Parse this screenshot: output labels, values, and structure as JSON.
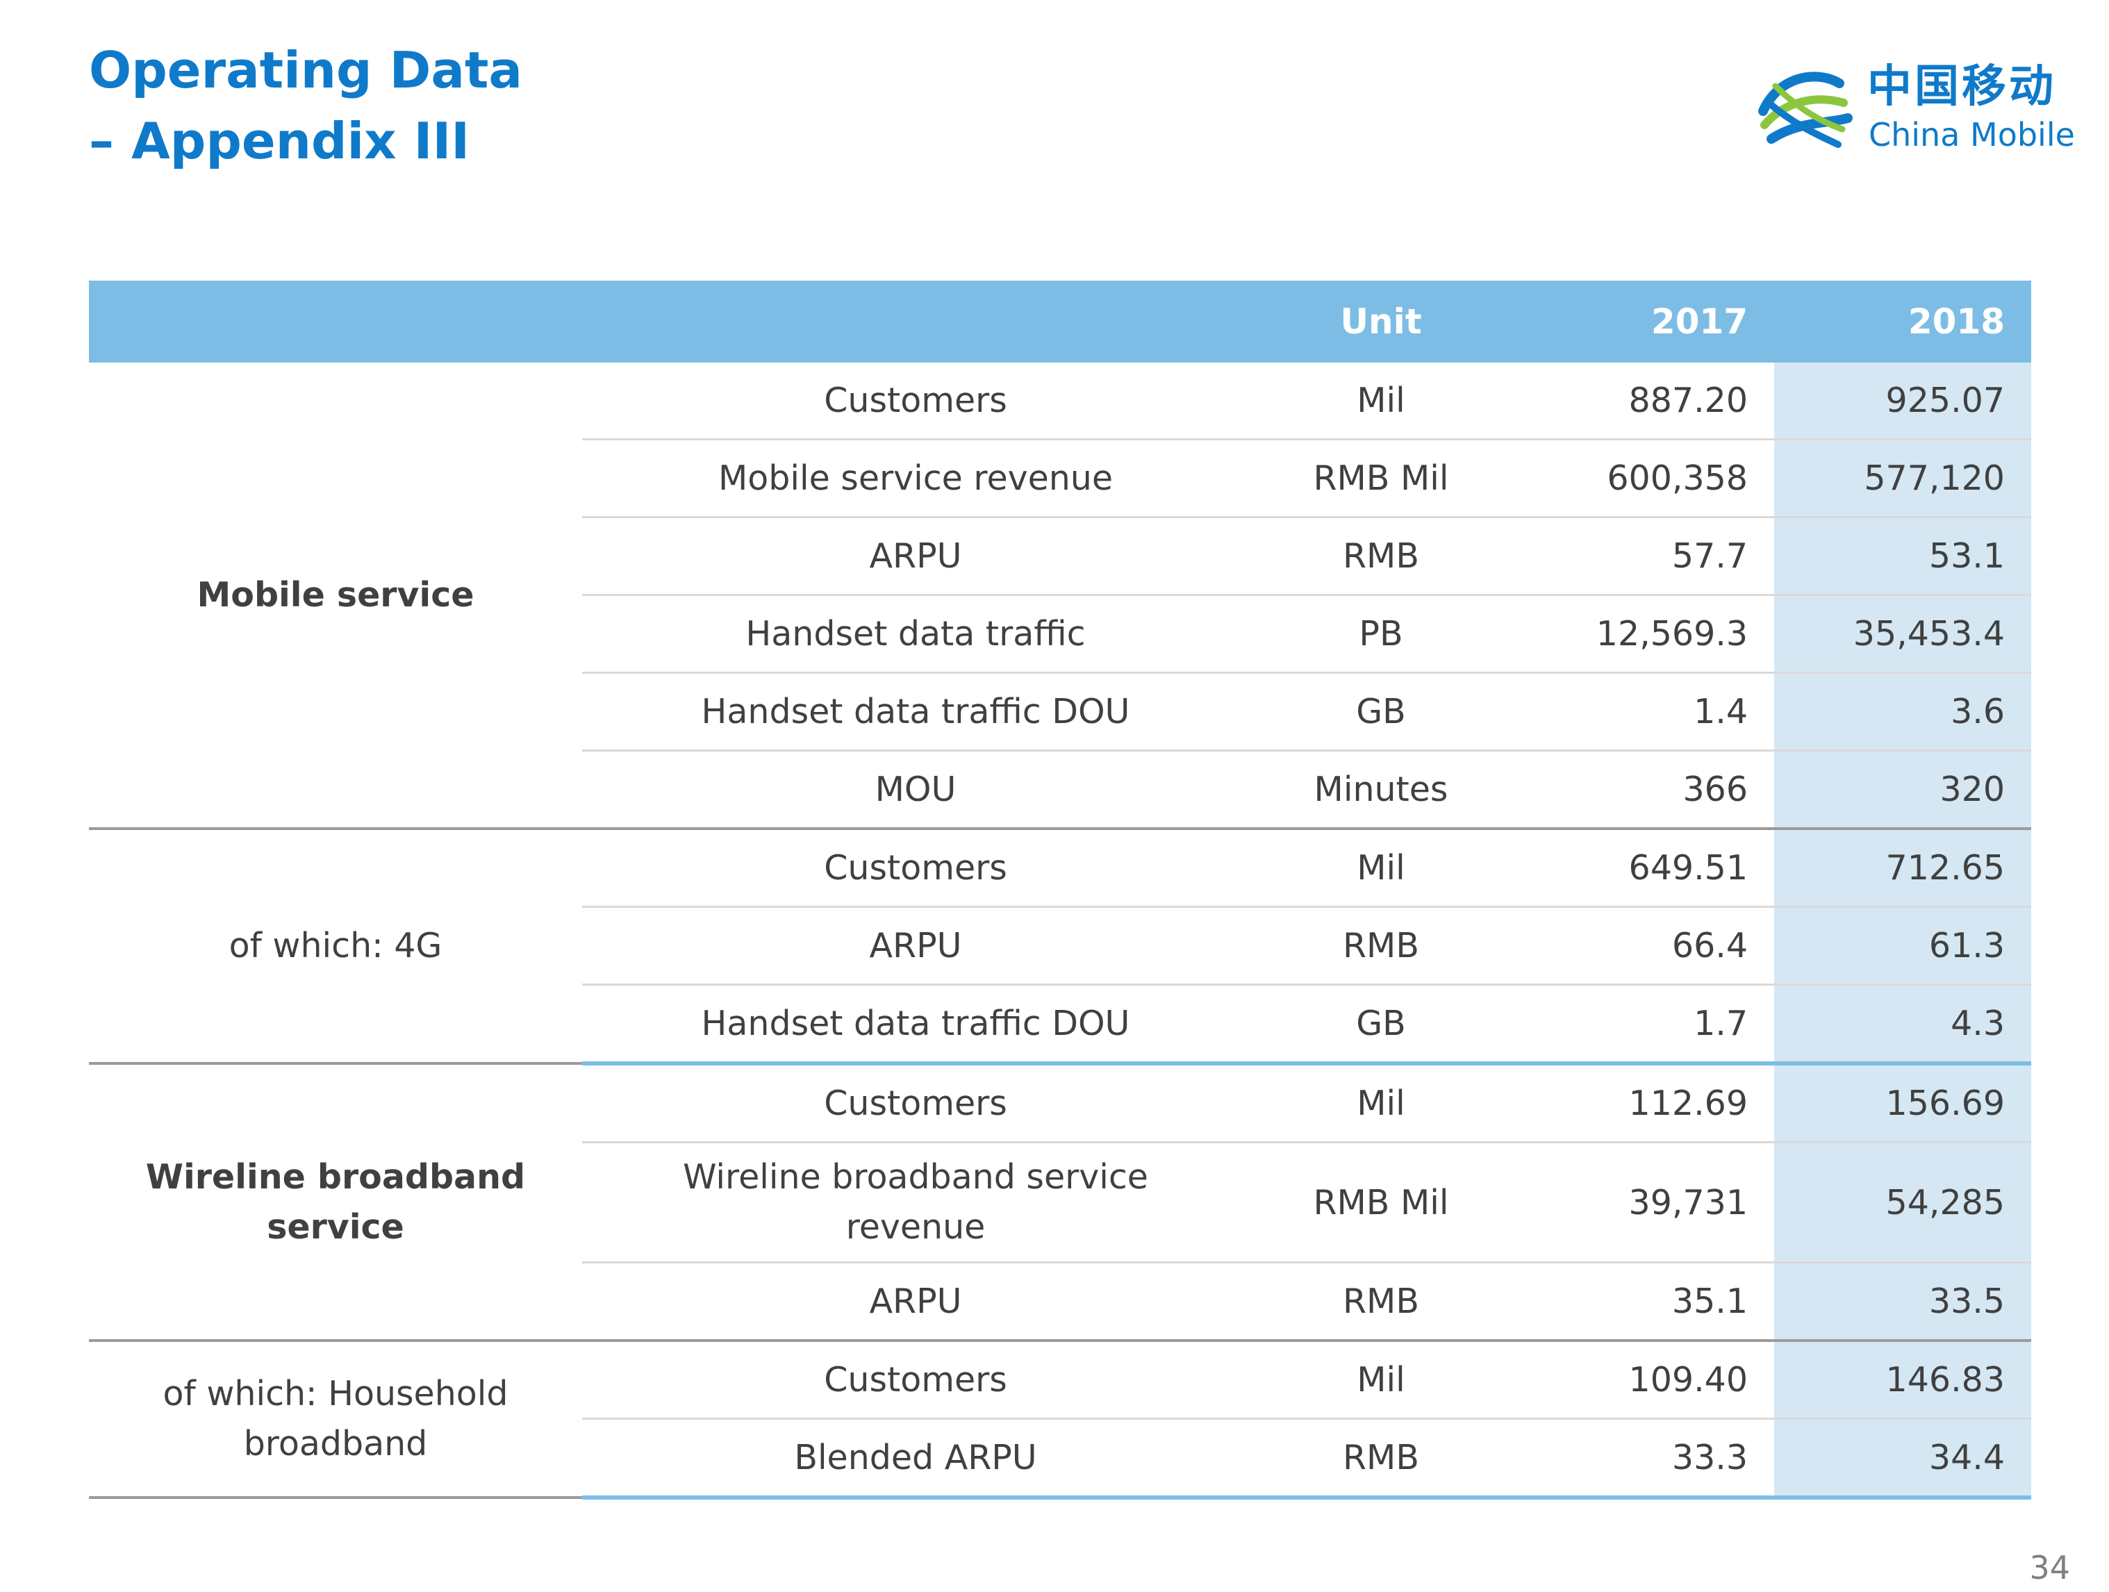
{
  "title": {
    "line1": "Operating Data",
    "line2": "– Appendix III"
  },
  "logo": {
    "icon": "china-mobile-logo-icon",
    "cn": "中国移动",
    "en": "China Mobile"
  },
  "table": {
    "headers": {
      "group": "",
      "item": "",
      "unit": "Unit",
      "y2017": "2017",
      "y2018": "2018"
    },
    "groups": [
      {
        "label": "Mobile service"
      },
      {
        "label": "of which: 4G"
      },
      {
        "label": "Wireline broadband service"
      },
      {
        "label": "of which: Household broadband"
      }
    ],
    "rows": [
      {
        "item": "Customers",
        "unit": "Mil",
        "y2017": "887.20",
        "y2018": "925.07"
      },
      {
        "item": "Mobile service revenue",
        "unit": "RMB Mil",
        "y2017": "600,358",
        "y2018": "577,120"
      },
      {
        "item": "ARPU",
        "unit": "RMB",
        "y2017": "57.7",
        "y2018": "53.1"
      },
      {
        "item": "Handset data traffic",
        "unit": "PB",
        "y2017": "12,569.3",
        "y2018": "35,453.4"
      },
      {
        "item": "Handset data traffic DOU",
        "unit": "GB",
        "y2017": "1.4",
        "y2018": "3.6"
      },
      {
        "item": "MOU",
        "unit": "Minutes",
        "y2017": "366",
        "y2018": "320"
      },
      {
        "item": "Customers",
        "unit": "Mil",
        "y2017": "649.51",
        "y2018": "712.65"
      },
      {
        "item": "ARPU",
        "unit": "RMB",
        "y2017": "66.4",
        "y2018": "61.3"
      },
      {
        "item": "Handset data traffic DOU",
        "unit": "GB",
        "y2017": "1.7",
        "y2018": "4.3"
      },
      {
        "item": "Customers",
        "unit": "Mil",
        "y2017": "112.69",
        "y2018": "156.69"
      },
      {
        "item": "Wireline broadband service revenue",
        "unit": "RMB Mil",
        "y2017": "39,731",
        "y2018": "54,285"
      },
      {
        "item": "ARPU",
        "unit": "RMB",
        "y2017": "35.1",
        "y2018": "33.5"
      },
      {
        "item": "Customers",
        "unit": "Mil",
        "y2017": "109.40",
        "y2018": "146.83"
      },
      {
        "item": "Blended ARPU",
        "unit": "RMB",
        "y2017": "33.3",
        "y2018": "34.4"
      }
    ]
  },
  "page_number": "34"
}
